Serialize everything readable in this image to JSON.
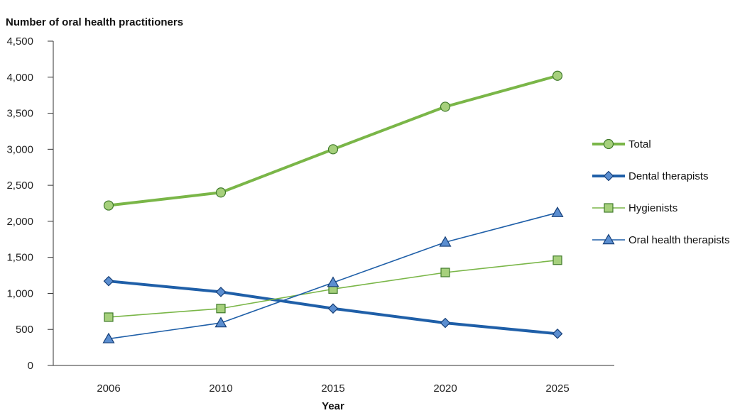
{
  "chart_data": {
    "type": "line",
    "title": "",
    "ylabel": "Number of oral health practitioners",
    "xlabel": "Year",
    "categories": [
      "2006",
      "2010",
      "2015",
      "2020",
      "2025"
    ],
    "ylim": [
      0,
      4500
    ],
    "yticks": [
      0,
      500,
      1000,
      1500,
      2000,
      2500,
      3000,
      3500,
      4000,
      4500
    ],
    "ytick_labels": [
      "0",
      "500",
      "1,000",
      "1,500",
      "2,000",
      "2,500",
      "3,000",
      "3,500",
      "4,000",
      "4,500"
    ],
    "grid": false,
    "legend_position": "right",
    "series": [
      {
        "name": "Total",
        "values": [
          2220,
          2400,
          3000,
          3590,
          4020
        ],
        "color": "#7ab648",
        "marker_fill": "#a6d07c",
        "marker": "circle",
        "line_style": "thick"
      },
      {
        "name": "Dental therapists",
        "values": [
          1170,
          1020,
          790,
          590,
          440
        ],
        "color": "#1f5fa8",
        "marker_fill": "#5b8ed0",
        "marker": "diamond",
        "line_style": "thick"
      },
      {
        "name": "Hygienists",
        "values": [
          670,
          790,
          1060,
          1290,
          1460
        ],
        "color": "#7ab648",
        "marker_fill": "#a6d07c",
        "marker": "square",
        "line_style": "thin"
      },
      {
        "name": "Oral health therapists",
        "values": [
          370,
          590,
          1150,
          1710,
          2120
        ],
        "color": "#1f5fa8",
        "marker_fill": "#5b8ed0",
        "marker": "triangle",
        "line_style": "thin"
      }
    ]
  }
}
